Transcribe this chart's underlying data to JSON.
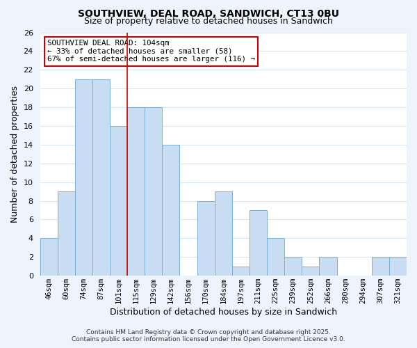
{
  "title": "SOUTHVIEW, DEAL ROAD, SANDWICH, CT13 0BU",
  "subtitle": "Size of property relative to detached houses in Sandwich",
  "xlabel": "Distribution of detached houses by size in Sandwich",
  "ylabel": "Number of detached properties",
  "bar_labels": [
    "46sqm",
    "60sqm",
    "74sqm",
    "87sqm",
    "101sqm",
    "115sqm",
    "129sqm",
    "142sqm",
    "156sqm",
    "170sqm",
    "184sqm",
    "197sqm",
    "211sqm",
    "225sqm",
    "239sqm",
    "252sqm",
    "266sqm",
    "280sqm",
    "294sqm",
    "307sqm",
    "321sqm"
  ],
  "bar_values": [
    4,
    9,
    21,
    21,
    16,
    18,
    18,
    14,
    0,
    8,
    9,
    1,
    7,
    4,
    2,
    1,
    2,
    0,
    0,
    2,
    2
  ],
  "bar_color": "#c9ddf2",
  "bar_edge_color": "#7ab0d9",
  "grid_color": "#d5e8f5",
  "reference_line_color": "#cc0000",
  "ylim": [
    0,
    26
  ],
  "yticks": [
    0,
    2,
    4,
    6,
    8,
    10,
    12,
    14,
    16,
    18,
    20,
    22,
    24,
    26
  ],
  "annotation_title": "SOUTHVIEW DEAL ROAD: 104sqm",
  "annotation_line1": "← 33% of detached houses are smaller (58)",
  "annotation_line2": "67% of semi-detached houses are larger (116) →",
  "annotation_box_facecolor": "#ffffff",
  "annotation_box_edgecolor": "#cc0000",
  "footer_line1": "Contains HM Land Registry data © Crown copyright and database right 2025.",
  "footer_line2": "Contains public sector information licensed under the Open Government Licence v3.0.",
  "background_color": "#edf4fc",
  "plot_bg_color": "#ffffff",
  "title_fontsize": 10,
  "subtitle_fontsize": 9
}
